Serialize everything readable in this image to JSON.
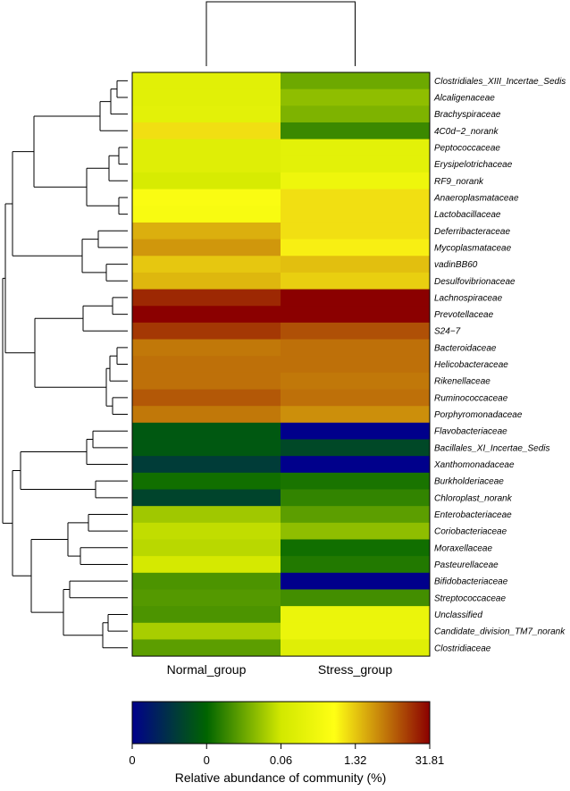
{
  "chart_data": {
    "type": "heatmap",
    "columns": [
      "Normal_group",
      "Stress_group"
    ],
    "rows": [
      "Clostridiales_XIII_Incertae_Sedis",
      "Alcaligenaceae",
      "Brachyspiraceae",
      "4C0d−2_norank",
      "Peptococcaceae",
      "Erysipelotrichaceae",
      "RF9_norank",
      "Anaeroplasmataceae",
      "Lactobacillaceae",
      "Deferribacteraceae",
      "Mycoplasmataceae",
      "vadinBB60",
      "Desulfovibrionaceae",
      "Lachnospiraceae",
      "Prevotellaceae",
      "S24−7",
      "Bacteroidaceae",
      "Helicobacteraceae",
      "Rikenellaceae",
      "Ruminococcaceae",
      "Porphyromonadaceae",
      "Flavobacteriaceae",
      "Bacillales_XI_Incertae_Sedis",
      "Xanthomonadaceae",
      "Burkholderiaceae",
      "Chloroplast_norank",
      "Enterobacteriaceae",
      "Coriobacteriaceae",
      "Moraxellaceae",
      "Pasteurellaceae",
      "Bifidobacteriaceae",
      "Streptococcaceae",
      "Unclassified",
      "Candidate_division_TM7_norank",
      "Clostridiaceae"
    ],
    "color_level_scale_0_to_1": [
      [
        0.56,
        0.38
      ],
      [
        0.56,
        0.42
      ],
      [
        0.57,
        0.4
      ],
      [
        0.72,
        0.32
      ],
      [
        0.55,
        0.57
      ],
      [
        0.55,
        0.57
      ],
      [
        0.52,
        0.61
      ],
      [
        0.66,
        0.72
      ],
      [
        0.65,
        0.72
      ],
      [
        0.78,
        0.72
      ],
      [
        0.81,
        0.7
      ],
      [
        0.75,
        0.76
      ],
      [
        0.77,
        0.74
      ],
      [
        0.95,
        1.0
      ],
      [
        1.0,
        1.0
      ],
      [
        0.93,
        0.9
      ],
      [
        0.85,
        0.86
      ],
      [
        0.86,
        0.86
      ],
      [
        0.86,
        0.85
      ],
      [
        0.89,
        0.86
      ],
      [
        0.85,
        0.82
      ],
      [
        0.22,
        0.0
      ],
      [
        0.22,
        0.18
      ],
      [
        0.15,
        0.0
      ],
      [
        0.27,
        0.28
      ],
      [
        0.17,
        0.31
      ],
      [
        0.44,
        0.36
      ],
      [
        0.48,
        0.42
      ],
      [
        0.47,
        0.27
      ],
      [
        0.51,
        0.29
      ],
      [
        0.34,
        0.0
      ],
      [
        0.35,
        0.33
      ],
      [
        0.34,
        0.6
      ],
      [
        0.45,
        0.6
      ],
      [
        0.36,
        0.55
      ]
    ],
    "legend": {
      "title": "Relative abundance of community (%)",
      "tick_labels": [
        "0",
        "0",
        "0.06",
        "1.32",
        "31.81"
      ],
      "tick_positions_0_to_1": [
        0.0,
        0.25,
        0.5,
        0.75,
        1.0
      ],
      "gradient_colors": [
        "#00008B",
        "#006400",
        "#FFFF00",
        "#8B0000"
      ]
    },
    "dendrogram": {
      "columns": "Normal_group and Stress_group joined at top",
      "rows_leaf_order": "same as rows"
    }
  }
}
